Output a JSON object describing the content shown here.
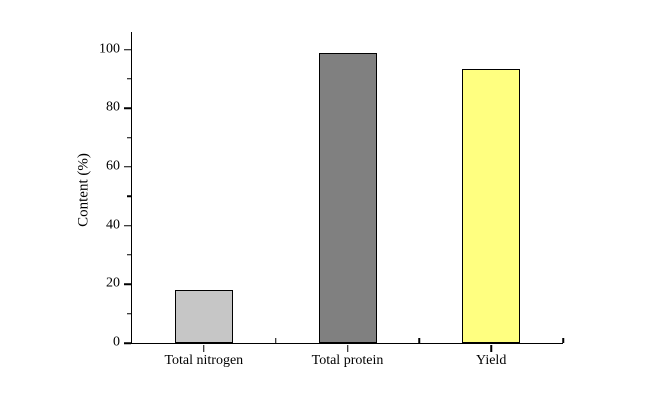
{
  "chart_data": {
    "type": "bar",
    "title": "",
    "categories": [
      "Total nitrogen",
      "Total protein",
      "Yield"
    ],
    "values": [
      18,
      99,
      93.5
    ],
    "bar_colors": [
      "#C6C6C6",
      "#808080",
      "#FFFF80"
    ],
    "bar_border_color": "#000000",
    "xlabel": "",
    "ylabel": "Content (%)",
    "ylim": [
      0,
      106
    ],
    "yticks_major": [
      0,
      20,
      40,
      60,
      80,
      100
    ],
    "yticks_minor": [
      10,
      30,
      50,
      70,
      90
    ],
    "grid": false,
    "legend": false,
    "background_color": "#FFFFFF",
    "axis_color": "#000000",
    "text_color": "#000000"
  }
}
